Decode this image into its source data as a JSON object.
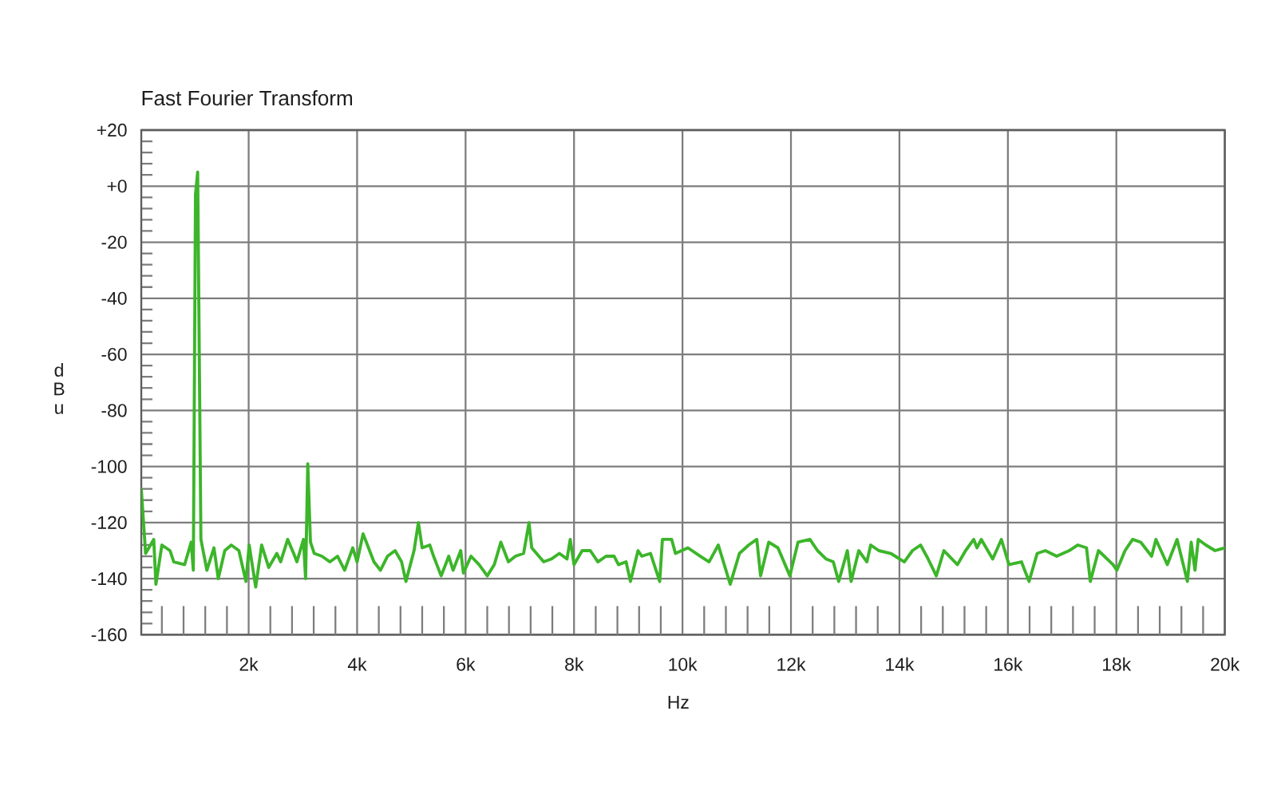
{
  "chart_data": {
    "type": "line",
    "title": "Fast Fourier Transform",
    "xlabel": "Hz",
    "ylabel": "dBu",
    "x": [
      20,
      100,
      250,
      290,
      400,
      550,
      620,
      820,
      940,
      980,
      1020,
      1060,
      1120,
      1230,
      1360,
      1440,
      1560,
      1680,
      1820,
      1950,
      2010,
      2130,
      2240,
      2370,
      2520,
      2590,
      2720,
      2830,
      2890,
      3010,
      3050,
      3090,
      3140,
      3210,
      3350,
      3500,
      3640,
      3770,
      3920,
      4000,
      4110,
      4230,
      4310,
      4430,
      4560,
      4700,
      4820,
      4900,
      5050,
      5130,
      5200,
      5340,
      5410,
      5550,
      5690,
      5770,
      5910,
      5960,
      6100,
      6250,
      6400,
      6530,
      6650,
      6790,
      6920,
      7070,
      7170,
      7220,
      7440,
      7580,
      7730,
      7870,
      7930,
      8000,
      8150,
      8300,
      8440,
      8590,
      8740,
      8820,
      8960,
      9040,
      9180,
      9250,
      9410,
      9580,
      9630,
      9800,
      9870,
      10100,
      10330,
      10490,
      10660,
      10880,
      11050,
      11220,
      11370,
      11440,
      11590,
      11760,
      11980,
      12130,
      12350,
      12490,
      12650,
      12780,
      12880,
      13040,
      13110,
      13250,
      13400,
      13470,
      13620,
      13840,
      14090,
      14240,
      14390,
      14530,
      14680,
      14820,
      15070,
      15220,
      15370,
      15430,
      15510,
      15720,
      15880,
      16020,
      16250,
      16390,
      16540,
      16690,
      16900,
      17130,
      17290,
      17450,
      17520,
      17670,
      17940,
      18010,
      18160,
      18300,
      18450,
      18650,
      18730,
      18940,
      19120,
      19310,
      19380,
      19450,
      19510,
      19650,
      19820,
      20000
    ],
    "series": [
      {
        "color": "#3cb52a",
        "values": [
          -108,
          -131,
          -126,
          -142,
          -128,
          -130,
          -134,
          -135,
          -127,
          -137,
          -3,
          5,
          -126,
          -137,
          -129,
          -140,
          -130,
          -128,
          -130,
          -141,
          -128,
          -143,
          -128,
          -136,
          -131,
          -134,
          -126,
          -131,
          -134,
          -126,
          -140,
          -99,
          -127,
          -131,
          -132,
          -134,
          -132,
          -137,
          -129,
          -134,
          -124,
          -130,
          -134,
          -137,
          -132,
          -130,
          -134,
          -141,
          -130,
          -120,
          -129,
          -128,
          -132,
          -139,
          -132,
          -137,
          -130,
          -138,
          -132,
          -135,
          -139,
          -135,
          -127,
          -134,
          -132,
          -131,
          -120,
          -129,
          -134,
          -133,
          -131,
          -133,
          -126,
          -135,
          -130,
          -130,
          -134,
          -132,
          -132,
          -135,
          -134,
          -141,
          -130,
          -132,
          -131,
          -141,
          -126,
          -126,
          -131,
          -129,
          -132,
          -134,
          -128,
          -142,
          -131,
          -128,
          -126,
          -139,
          -127,
          -129,
          -139,
          -127,
          -126,
          -130,
          -133,
          -134,
          -141,
          -130,
          -141,
          -130,
          -134,
          -128,
          -130,
          -131,
          -134,
          -130,
          -128,
          -133,
          -139,
          -130,
          -135,
          -130,
          -126,
          -129,
          -126,
          -133,
          -126,
          -135,
          -134,
          -141,
          -131,
          -130,
          -132,
          -130,
          -128,
          -129,
          -141,
          -130,
          -135,
          -137,
          -130,
          -126,
          -127,
          -132,
          -126,
          -135,
          -126,
          -141,
          -127,
          -137,
          -126,
          -128,
          -130,
          -129
        ]
      }
    ],
    "xlim": [
      20,
      20000
    ],
    "ylim": [
      -160,
      20
    ],
    "xticks": [
      {
        "value": 2000,
        "label": "2k"
      },
      {
        "value": 4000,
        "label": "4k"
      },
      {
        "value": 6000,
        "label": "6k"
      },
      {
        "value": 8000,
        "label": "8k"
      },
      {
        "value": 10000,
        "label": "10k"
      },
      {
        "value": 12000,
        "label": "12k"
      },
      {
        "value": 14000,
        "label": "14k"
      },
      {
        "value": 16000,
        "label": "16k"
      },
      {
        "value": 18000,
        "label": "18k"
      },
      {
        "value": 20000,
        "label": "20k"
      }
    ],
    "yticks": [
      -160,
      -140,
      -120,
      -100,
      -80,
      -60,
      -40,
      -20,
      {
        "value": 0,
        "label": "+0"
      },
      {
        "value": 20,
        "label": "+20"
      }
    ],
    "grid": true
  }
}
